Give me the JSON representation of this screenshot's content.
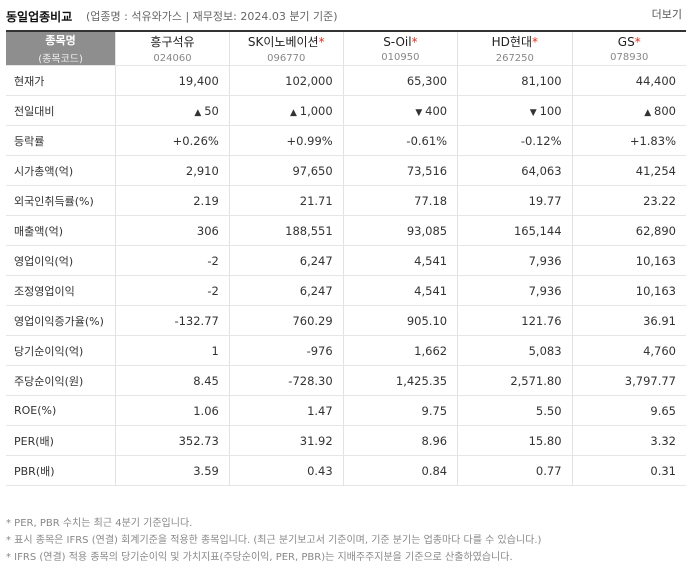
{
  "header": {
    "title": "동일업종비교",
    "subtitle": "(업종명 : 석유와가스 | 재무정보: 2024.03 분기 기준)",
    "more": "더보기"
  },
  "table": {
    "corner": {
      "line1": "종목명",
      "line2": "(종목코드)"
    },
    "companies": [
      {
        "name": "흥구석유",
        "starred": false,
        "code": "024060"
      },
      {
        "name": "SK이노베이션",
        "starred": true,
        "code": "096770"
      },
      {
        "name": "S-Oil",
        "starred": true,
        "code": "010950"
      },
      {
        "name": "HD현대",
        "starred": true,
        "code": "267250"
      },
      {
        "name": "GS",
        "starred": true,
        "code": "078930"
      }
    ],
    "rows": [
      {
        "label": "현재가",
        "values": [
          "19,400",
          "102,000",
          "65,300",
          "81,100",
          "44,400"
        ]
      },
      {
        "label": "전일대비",
        "values": [
          "50",
          "1,000",
          "400",
          "100",
          "800"
        ],
        "dirs": [
          "up",
          "up",
          "down",
          "down",
          "up"
        ]
      },
      {
        "label": "등락률",
        "values": [
          "+0.26%",
          "+0.99%",
          "-0.61%",
          "-0.12%",
          "+1.83%"
        ],
        "dirs": [
          "up",
          "up",
          "down",
          "down",
          "up"
        ]
      },
      {
        "label": "시가총액(억)",
        "values": [
          "2,910",
          "97,650",
          "73,516",
          "64,063",
          "41,254"
        ]
      },
      {
        "label": "외국인취득률(%)",
        "values": [
          "2.19",
          "21.71",
          "77.18",
          "19.77",
          "23.22"
        ]
      },
      {
        "label": "매출액(억)",
        "values": [
          "306",
          "188,551",
          "93,085",
          "165,144",
          "62,890"
        ]
      },
      {
        "label": "영업이익(억)",
        "values": [
          "-2",
          "6,247",
          "4,541",
          "7,936",
          "10,163"
        ]
      },
      {
        "label": "조정영업이익",
        "values": [
          "-2",
          "6,247",
          "4,541",
          "7,936",
          "10,163"
        ]
      },
      {
        "label": "영업이익증가율(%)",
        "values": [
          "-132.77",
          "760.29",
          "905.10",
          "121.76",
          "36.91"
        ]
      },
      {
        "label": "당기순이익(억)",
        "values": [
          "1",
          "-976",
          "1,662",
          "5,083",
          "4,760"
        ]
      },
      {
        "label": "주당순이익(원)",
        "values": [
          "8.45",
          "-728.30",
          "1,425.35",
          "2,571.80",
          "3,797.77"
        ]
      },
      {
        "label": "ROE(%)",
        "values": [
          "1.06",
          "1.47",
          "9.75",
          "5.50",
          "9.65"
        ]
      },
      {
        "label": "PER(배)",
        "values": [
          "352.73",
          "31.92",
          "8.96",
          "15.80",
          "3.32"
        ]
      },
      {
        "label": "PBR(배)",
        "values": [
          "3.59",
          "0.43",
          "0.84",
          "0.77",
          "0.31"
        ]
      }
    ]
  },
  "notes": [
    "* PER, PBR 수치는 최근 4분기 기준입니다.",
    "* 표시 종목은 IFRS (연결) 회계기준을 적용한 종목입니다. (최근 분기보고서 기준이며, 기준 분기는 업종마다 다를 수 있습니다.)",
    "* IFRS (연결) 적용 종목의 당기순이익 및 가치지표(주당순이익, PER, PBR)는 지배주주지분을 기준으로 산출하였습니다."
  ],
  "colors": {
    "up": "#e0311c",
    "down": "#1d5ec9",
    "header_bg": "#8e8e8e"
  }
}
